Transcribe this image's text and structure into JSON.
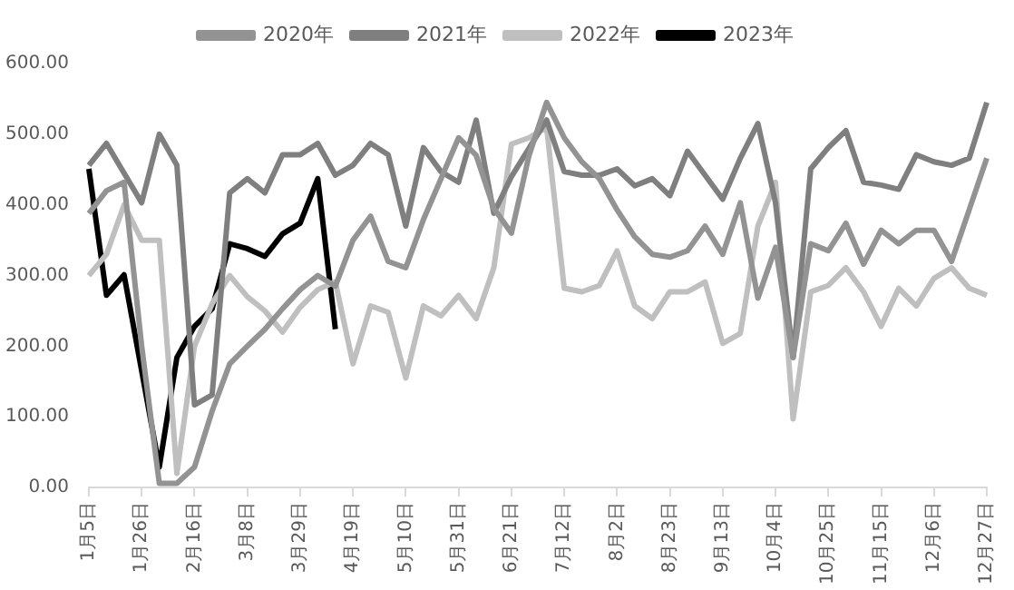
{
  "chart_data": {
    "type": "line",
    "categories": [
      "1月5日",
      null,
      null,
      "1月26日",
      null,
      null,
      "2月16日",
      null,
      null,
      "3月8日",
      null,
      null,
      "3月29日",
      null,
      null,
      "4月19日",
      null,
      null,
      "5月10日",
      null,
      null,
      "5月31日",
      null,
      null,
      "6月21日",
      null,
      null,
      "7月12日",
      null,
      null,
      "8月2日",
      null,
      null,
      "8月23日",
      null,
      null,
      "9月13日",
      null,
      null,
      "10月4日",
      null,
      null,
      "10月25日",
      null,
      null,
      "11月15日",
      null,
      null,
      "12月6日",
      null,
      null,
      "12月27日"
    ],
    "series": [
      {
        "name": "2020年",
        "color": "#939393",
        "values": [
          388,
          420,
          432,
          200,
          6,
          6,
          29,
          108,
          175,
          200,
          224,
          253,
          280,
          300,
          285,
          350,
          384,
          320,
          311,
          379,
          437,
          495,
          470,
          395,
          360,
          470,
          545,
          495,
          461,
          437,
          393,
          355,
          330,
          326,
          335,
          370,
          330,
          403,
          268,
          340,
          184,
          345,
          335,
          374,
          316,
          364,
          345,
          364,
          364,
          320,
          393,
          466
        ]
      },
      {
        "name": "2021年",
        "color": "#7f7f7f",
        "values": [
          456,
          487,
          445,
          403,
          500,
          456,
          117,
          131,
          417,
          437,
          417,
          471,
          471,
          487,
          442,
          456,
          487,
          471,
          370,
          481,
          447,
          432,
          520,
          388,
          440,
          480,
          520,
          447,
          442,
          442,
          451,
          427,
          437,
          413,
          476,
          442,
          408,
          466,
          515,
          403,
          184,
          451,
          481,
          505,
          432,
          428,
          422,
          471,
          461,
          456,
          466,
          545
        ]
      },
      {
        "name": "2022年",
        "color": "#bfbfbf",
        "values": [
          300,
          330,
          400,
          350,
          350,
          20,
          200,
          260,
          300,
          270,
          250,
          220,
          255,
          280,
          291,
          175,
          257,
          248,
          155,
          257,
          243,
          272,
          239,
          311,
          486,
          495,
          510,
          282,
          277,
          286,
          335,
          257,
          239,
          277,
          277,
          291,
          204,
          218,
          370,
          432,
          97,
          277,
          286,
          311,
          277,
          228,
          282,
          257,
          296,
          311,
          282,
          272
        ]
      },
      {
        "name": "2023年",
        "color": "#000000",
        "values": [
          451,
          272,
          301,
          165,
          29,
          184,
          228,
          253,
          345,
          338,
          327,
          359,
          374,
          437,
          224,
          null,
          null,
          null,
          null,
          null,
          null,
          null,
          null,
          null,
          null,
          null,
          null,
          null,
          null,
          null,
          null,
          null,
          null,
          null,
          null,
          null,
          null,
          null,
          null,
          null,
          null,
          null,
          null,
          null,
          null,
          null,
          null,
          null,
          null,
          null,
          null,
          null
        ]
      }
    ],
    "ylim": [
      0,
      600
    ],
    "yticks": [
      {
        "value": 0,
        "label": "0.00"
      },
      {
        "value": 100,
        "label": "100.00"
      },
      {
        "value": 200,
        "label": "200.00"
      },
      {
        "value": 300,
        "label": "300.00"
      },
      {
        "value": 400,
        "label": "400.00"
      },
      {
        "value": 500,
        "label": "500.00"
      },
      {
        "value": 600,
        "label": "600.00"
      }
    ],
    "legend": "top",
    "marker": "none",
    "line_style": "solid"
  }
}
